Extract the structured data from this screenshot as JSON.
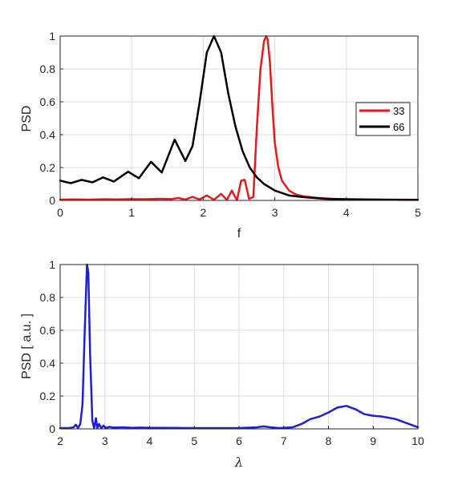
{
  "chart_data": [
    {
      "type": "line",
      "title": "",
      "xlabel": "f",
      "ylabel": "PSD",
      "xlim": [
        0,
        5
      ],
      "ylim": [
        0,
        1
      ],
      "xticks": [
        "0",
        "1",
        "2",
        "3",
        "4",
        "5"
      ],
      "yticks": [
        "0",
        "0.2",
        "0.4",
        "0.6",
        "0.8",
        "1"
      ],
      "grid": true,
      "legend_position": "right",
      "series": [
        {
          "name": "33",
          "color": "#e41a1c",
          "x": [
            0,
            0.2,
            0.4,
            0.6,
            0.8,
            1.0,
            1.2,
            1.4,
            1.55,
            1.65,
            1.75,
            1.85,
            1.95,
            2.05,
            2.15,
            2.25,
            2.33,
            2.4,
            2.47,
            2.53,
            2.58,
            2.64,
            2.7,
            2.75,
            2.8,
            2.85,
            2.88,
            2.9,
            2.93,
            2.97,
            3.0,
            3.05,
            3.1,
            3.2,
            3.3,
            3.4,
            3.6,
            3.8,
            4.0,
            4.5,
            5.0
          ],
          "values": [
            0.005,
            0.006,
            0.005,
            0.007,
            0.006,
            0.008,
            0.007,
            0.01,
            0.008,
            0.015,
            0.005,
            0.022,
            0.006,
            0.03,
            0.004,
            0.04,
            0.003,
            0.06,
            0.002,
            0.12,
            0.125,
            0.01,
            0.02,
            0.45,
            0.8,
            0.97,
            1.0,
            0.98,
            0.85,
            0.55,
            0.35,
            0.2,
            0.12,
            0.06,
            0.035,
            0.025,
            0.015,
            0.01,
            0.008,
            0.005,
            0.004
          ]
        },
        {
          "name": "66",
          "color": "#000000",
          "x": [
            0,
            0.15,
            0.3,
            0.45,
            0.6,
            0.75,
            0.95,
            1.1,
            1.27,
            1.42,
            1.6,
            1.75,
            1.85,
            1.95,
            2.05,
            2.15,
            2.25,
            2.35,
            2.45,
            2.55,
            2.65,
            2.75,
            2.85,
            3.0,
            3.2,
            3.4,
            3.7,
            4.0,
            4.5,
            5.0
          ],
          "values": [
            0.12,
            0.105,
            0.125,
            0.11,
            0.14,
            0.115,
            0.175,
            0.135,
            0.235,
            0.17,
            0.37,
            0.24,
            0.33,
            0.6,
            0.9,
            1.0,
            0.9,
            0.65,
            0.45,
            0.3,
            0.2,
            0.14,
            0.1,
            0.06,
            0.03,
            0.02,
            0.01,
            0.006,
            0.004,
            0.003
          ]
        }
      ]
    },
    {
      "type": "line",
      "title": "",
      "xlabel": "λ",
      "ylabel": "PSD [ a.u. ]",
      "xlim": [
        2,
        10
      ],
      "ylim": [
        0,
        1
      ],
      "xticks": [
        "2",
        "3",
        "4",
        "5",
        "6",
        "7",
        "8",
        "9",
        "10"
      ],
      "yticks": [
        "0",
        "0.2",
        "0.4",
        "0.6",
        "0.8",
        "1"
      ],
      "grid": true,
      "series": [
        {
          "color": "#1f1fd6",
          "x": [
            2.0,
            2.2,
            2.3,
            2.35,
            2.4,
            2.45,
            2.5,
            2.55,
            2.6,
            2.63,
            2.67,
            2.72,
            2.76,
            2.8,
            2.83,
            2.87,
            2.92,
            2.97,
            3.02,
            3.1,
            3.2,
            3.4,
            3.6,
            3.8,
            4.0,
            4.5,
            5.0,
            5.5,
            6.0,
            6.4,
            6.55,
            6.7,
            6.9,
            7.2,
            7.4,
            7.6,
            7.8,
            8.0,
            8.2,
            8.4,
            8.6,
            8.8,
            9.0,
            9.2,
            9.5,
            9.8,
            10.0
          ],
          "values": [
            0.005,
            0.005,
            0.01,
            0.025,
            0.005,
            0.03,
            0.15,
            0.6,
            1.0,
            0.95,
            0.45,
            0.05,
            0.005,
            0.065,
            0.005,
            0.03,
            0.005,
            0.02,
            0.005,
            0.012,
            0.008,
            0.01,
            0.007,
            0.008,
            0.007,
            0.006,
            0.005,
            0.005,
            0.005,
            0.01,
            0.015,
            0.01,
            0.005,
            0.01,
            0.03,
            0.06,
            0.075,
            0.1,
            0.13,
            0.14,
            0.12,
            0.09,
            0.08,
            0.075,
            0.06,
            0.03,
            0.01
          ]
        }
      ]
    }
  ]
}
